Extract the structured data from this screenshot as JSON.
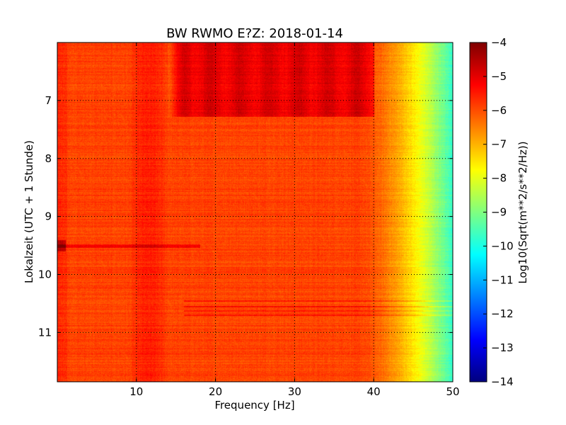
{
  "chart_data": {
    "type": "heatmap",
    "title": "BW RWMO E?Z: 2018-01-14",
    "xlabel": "Frequency [Hz]",
    "ylabel": "Lokalzeit (UTC + 1 Stunde)",
    "xlim": [
      0,
      50
    ],
    "ylim": [
      11.85,
      6.0
    ],
    "y_inverted": true,
    "grid": true,
    "x_ticks": [
      10,
      20,
      30,
      40,
      50
    ],
    "y_ticks": [
      7,
      8,
      9,
      10,
      11
    ],
    "colorbar": {
      "label": "Log10(Sqrt(m**2/s**2/Hz))",
      "colormap": "jet",
      "vmin": -14,
      "vmax": -4,
      "ticks": [
        -4,
        -5,
        -6,
        -7,
        -8,
        -9,
        -10,
        -11,
        -12,
        -13,
        -14
      ]
    },
    "features": {
      "baseline_level": -5.9,
      "peak_band_hz": [
        9,
        14
      ],
      "peak_band_level": -5.4,
      "high_energy_until_hour": 7.28,
      "high_energy_band_hz": [
        16,
        40
      ],
      "high_energy_level": -5.0,
      "rolloff_start_hz": 38,
      "edge_level_at_50hz": -9.8,
      "transient_hour": 9.5,
      "transient_level": -4.5,
      "striped_hours": [
        10.45,
        10.55,
        10.62,
        10.7
      ],
      "striped_level": -5.2
    }
  }
}
